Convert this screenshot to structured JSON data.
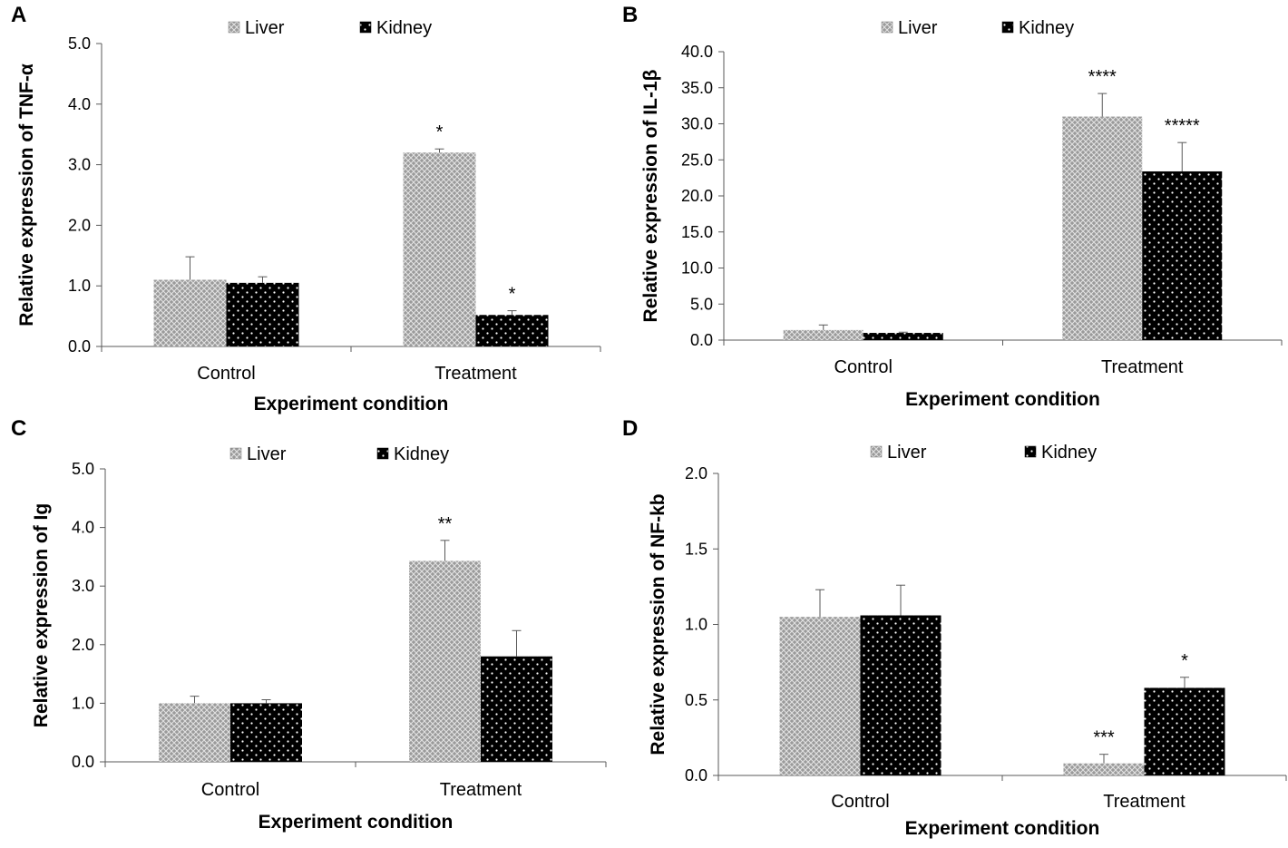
{
  "colors": {
    "axis": "#595959",
    "text": "#000000",
    "liver_fill": "#9a9a9a",
    "liver_pattern": "#e2e2e2",
    "kidney_fill": "#000000",
    "kidney_dots": "#ffffff",
    "error_bar": "#595959"
  },
  "chart_data": [
    {
      "panel_label": "A",
      "type": "bar",
      "title": "",
      "xlabel": "Experiment condition",
      "ylabel": "Relative expression of TNF-α",
      "categories": [
        "Control",
        "Treatment"
      ],
      "ylim": [
        0,
        5
      ],
      "yticks": [
        "0.0",
        "1.0",
        "2.0",
        "3.0",
        "4.0",
        "5.0"
      ],
      "legend": [
        "Liver",
        "Kidney"
      ],
      "legend_position": "top-center",
      "series": [
        {
          "name": "Liver",
          "values": [
            1.1,
            3.2
          ],
          "errors": [
            0.38,
            0.06
          ],
          "annotations": [
            "",
            "*"
          ]
        },
        {
          "name": "Kidney",
          "values": [
            1.05,
            0.52
          ],
          "errors": [
            0.1,
            0.07
          ],
          "annotations": [
            "",
            "*"
          ]
        }
      ]
    },
    {
      "panel_label": "B",
      "type": "bar",
      "title": "",
      "xlabel": "Experiment condition",
      "ylabel": "Relative expression of IL-1β",
      "categories": [
        "Control",
        "Treatment"
      ],
      "ylim": [
        0,
        40
      ],
      "yticks": [
        "0.0",
        "5.0",
        "10.0",
        "15.0",
        "20.0",
        "25.0",
        "30.0",
        "35.0",
        "40.0"
      ],
      "legend": [
        "Liver",
        "Kidney"
      ],
      "legend_position": "top-center",
      "series": [
        {
          "name": "Liver",
          "values": [
            1.4,
            31.0
          ],
          "errors": [
            0.7,
            3.2
          ],
          "annotations": [
            "",
            "****"
          ]
        },
        {
          "name": "Kidney",
          "values": [
            1.0,
            23.4
          ],
          "errors": [
            0.1,
            4.0
          ],
          "annotations": [
            "",
            "*****"
          ]
        }
      ]
    },
    {
      "panel_label": "C",
      "type": "bar",
      "title": "",
      "xlabel": "Experiment condition",
      "ylabel": "Relative expression of Ig",
      "categories": [
        "Control",
        "Treatment"
      ],
      "ylim": [
        0,
        5
      ],
      "yticks": [
        "0.0",
        "1.0",
        "2.0",
        "3.0",
        "4.0",
        "5.0"
      ],
      "legend": [
        "Liver",
        "Kidney"
      ],
      "legend_position": "top-center",
      "series": [
        {
          "name": "Liver",
          "values": [
            1.0,
            3.43
          ],
          "errors": [
            0.12,
            0.35
          ],
          "annotations": [
            "",
            "**"
          ]
        },
        {
          "name": "Kidney",
          "values": [
            1.0,
            1.8
          ],
          "errors": [
            0.06,
            0.44
          ],
          "annotations": [
            "",
            ""
          ]
        }
      ]
    },
    {
      "panel_label": "D",
      "type": "bar",
      "title": "",
      "xlabel": "Experiment condition",
      "ylabel": "Relative expression of NF-kb",
      "categories": [
        "Control",
        "Treatment"
      ],
      "ylim": [
        0,
        2
      ],
      "yticks": [
        "0.0",
        "0.5",
        "1.0",
        "1.5",
        "2.0"
      ],
      "legend": [
        "Liver",
        "Kidney"
      ],
      "legend_position": "top-center",
      "series": [
        {
          "name": "Liver",
          "values": [
            1.05,
            0.08
          ],
          "errors": [
            0.18,
            0.06
          ],
          "annotations": [
            "",
            "***"
          ]
        },
        {
          "name": "Kidney",
          "values": [
            1.06,
            0.58
          ],
          "errors": [
            0.2,
            0.07
          ],
          "annotations": [
            "",
            "*"
          ]
        }
      ]
    }
  ]
}
